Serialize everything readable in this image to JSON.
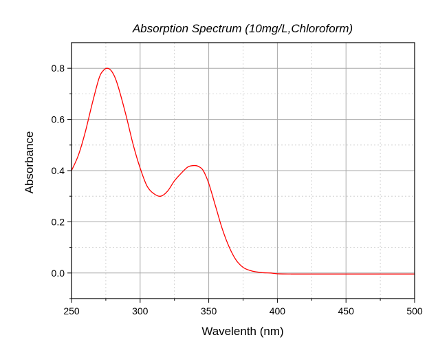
{
  "chart_data": {
    "type": "line",
    "title": "Absorption Spectrum (10mg/L,Chloroform)",
    "xlabel": "Wavelenth (nm)",
    "ylabel": "Absorbance",
    "xlim": [
      250,
      500
    ],
    "ylim": [
      -0.1,
      0.9
    ],
    "x_ticks": [
      250,
      300,
      350,
      400,
      450,
      500
    ],
    "y_ticks": [
      0.0,
      0.2,
      0.4,
      0.6,
      0.8
    ],
    "y_tick_labels": [
      "0.0",
      "0.2",
      "0.4",
      "0.6",
      "0.8"
    ],
    "grid": true,
    "line_color": "#ff0000",
    "series": [
      {
        "x": [
          250,
          255,
          260,
          265,
          270,
          273,
          276,
          279,
          282,
          285,
          290,
          295,
          300,
          305,
          310,
          315,
          320,
          325,
          330,
          335,
          340,
          343,
          346,
          350,
          355,
          360,
          365,
          370,
          375,
          380,
          385,
          390,
          395,
          400,
          410,
          420,
          450,
          500
        ],
        "y": [
          0.4,
          0.46,
          0.55,
          0.66,
          0.76,
          0.79,
          0.8,
          0.79,
          0.76,
          0.71,
          0.61,
          0.5,
          0.41,
          0.34,
          0.31,
          0.3,
          0.32,
          0.36,
          0.39,
          0.415,
          0.42,
          0.415,
          0.4,
          0.35,
          0.26,
          0.17,
          0.1,
          0.05,
          0.022,
          0.01,
          0.004,
          0.001,
          0.0,
          -0.003,
          -0.004,
          -0.004,
          -0.004,
          -0.004
        ]
      }
    ]
  }
}
